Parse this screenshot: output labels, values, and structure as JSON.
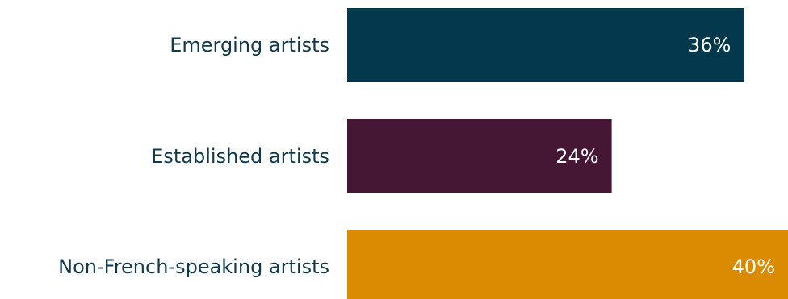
{
  "chart_data": {
    "type": "bar",
    "orientation": "horizontal",
    "categories": [
      "Emerging artists",
      "Established artists",
      "Non-French-speaking artists"
    ],
    "values": [
      36,
      24,
      40
    ],
    "value_labels": [
      "36%",
      "24%",
      "40%"
    ],
    "unit": "%",
    "xlim": [
      0,
      40
    ],
    "colors": [
      "#03384d",
      "#461735",
      "#db8b02"
    ],
    "title": "",
    "xlabel": "",
    "ylabel": "",
    "grid": false,
    "legend": "none",
    "axes_visible": false
  }
}
